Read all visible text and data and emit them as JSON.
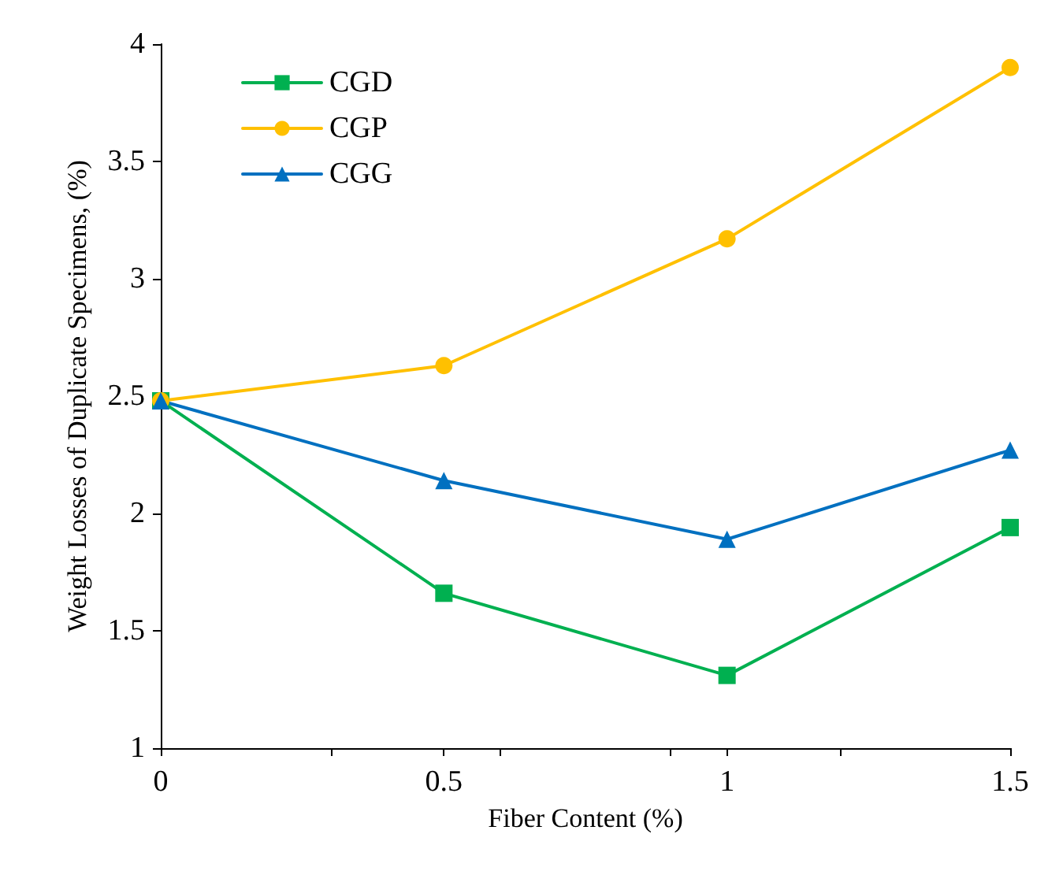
{
  "chart_data": {
    "type": "line",
    "xlabel": "Fiber Content (%)",
    "ylabel": "Weight Losses of Duplicate Specimens, (%)",
    "x": [
      0,
      0.5,
      1,
      1.5
    ],
    "series": [
      {
        "name": "CGD",
        "color": "#00b050",
        "marker": "square",
        "values": [
          2.48,
          1.66,
          1.31,
          1.94
        ]
      },
      {
        "name": "CGP",
        "color": "#ffc000",
        "marker": "circle",
        "values": [
          2.48,
          2.63,
          3.17,
          3.9
        ]
      },
      {
        "name": "CGG",
        "color": "#0070c0",
        "marker": "triangle",
        "values": [
          2.48,
          2.14,
          1.89,
          2.27
        ]
      }
    ],
    "xlim": [
      0,
      1.5
    ],
    "xticks": [
      0,
      {
        "value": 0.3,
        "label": null
      },
      0.5,
      {
        "value": 0.6,
        "label": null
      },
      {
        "value": 0.9,
        "label": null
      },
      1,
      {
        "value": 1.2,
        "label": null
      },
      1.5
    ],
    "ylim": [
      1,
      4
    ],
    "yticks": [
      1,
      1.5,
      2,
      2.5,
      3,
      3.5,
      4
    ],
    "grid": false,
    "legend": "top left",
    "line_style": "solid"
  }
}
